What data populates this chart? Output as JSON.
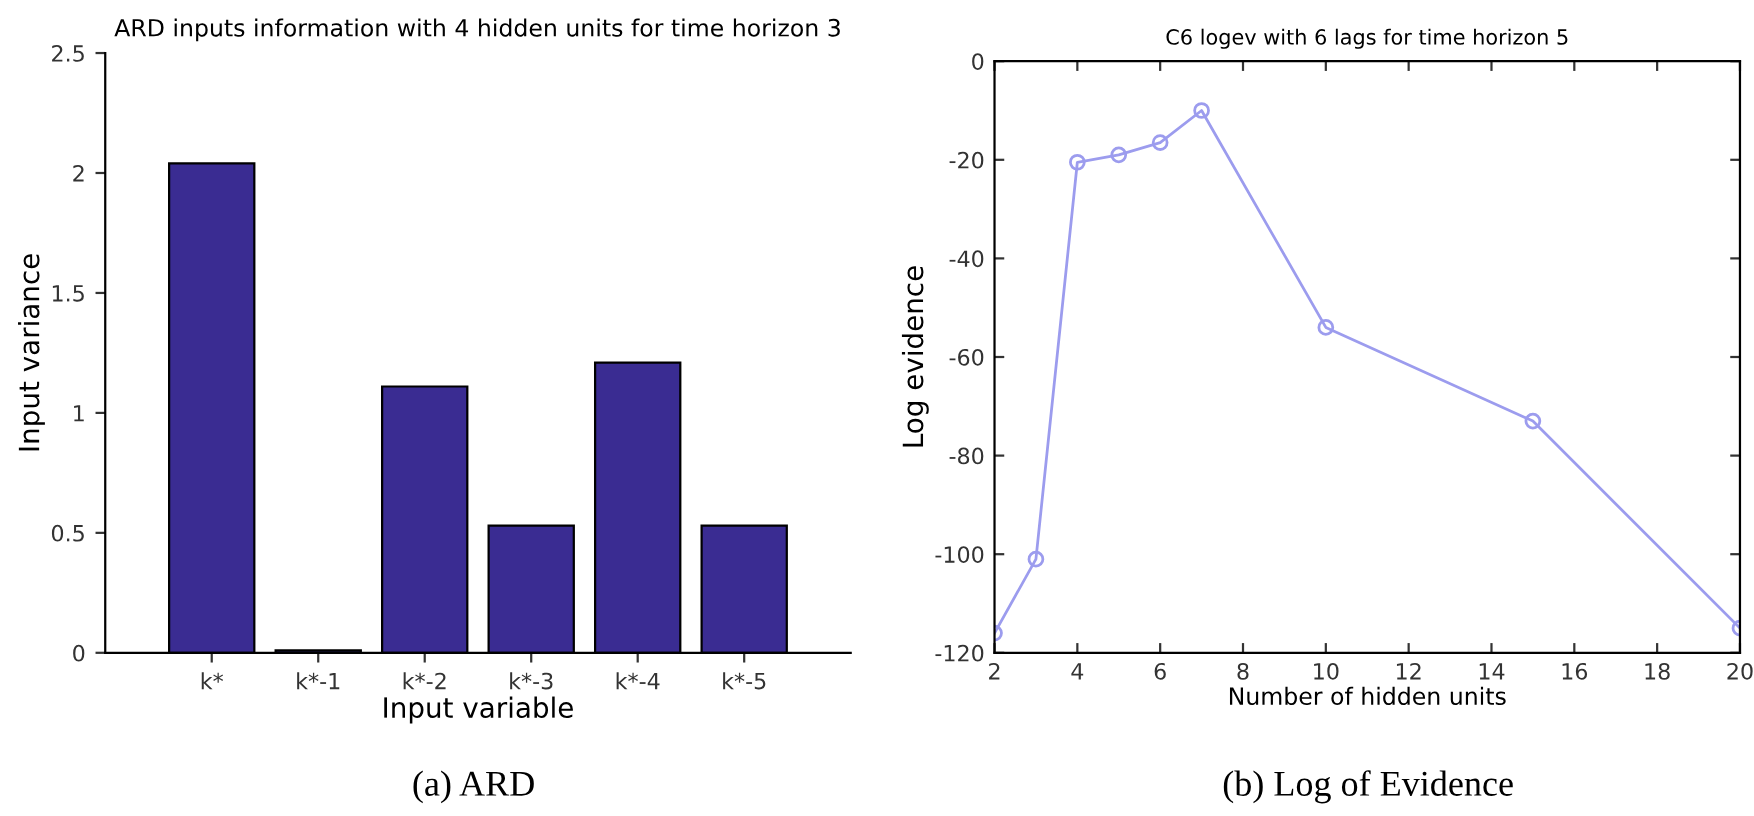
{
  "chart_data": [
    {
      "type": "bar",
      "title": "ARD inputs information with 4 hidden units for time horizon 3",
      "xlabel": "Input variable",
      "ylabel": "Input variance",
      "categories": [
        "k*",
        "k*-1",
        "k*-2",
        "k*-3",
        "k*-4",
        "k*-5"
      ],
      "values": [
        2.04,
        0.01,
        1.11,
        0.53,
        1.21,
        0.53
      ],
      "color": "#3a2c92",
      "ylim": [
        0,
        2.5
      ],
      "yticks": [
        0,
        0.5,
        1,
        1.5,
        2,
        2.5
      ],
      "grid": false,
      "annotations": [
        "(a) ARD"
      ]
    },
    {
      "type": "line",
      "title": "C6 logev with 6 lags for time horizon 5",
      "xlabel": "Number of hidden units",
      "ylabel": "Log evidence",
      "x": [
        2,
        3,
        4,
        5,
        6,
        7,
        10,
        15,
        20
      ],
      "values": [
        -116,
        -101,
        -20.5,
        -19,
        -16.5,
        -10,
        -54,
        -73,
        -115
      ],
      "color": "#9c9cee",
      "marker": "circle",
      "xlim": [
        2,
        20
      ],
      "ylim": [
        -120,
        0
      ],
      "xticks": [
        2,
        4,
        6,
        8,
        10,
        12,
        14,
        16,
        18,
        20
      ],
      "yticks": [
        -120,
        -100,
        -80,
        -60,
        -40,
        -20,
        0
      ],
      "grid": false,
      "annotations": [
        "(b) Log of Evidence"
      ]
    }
  ]
}
